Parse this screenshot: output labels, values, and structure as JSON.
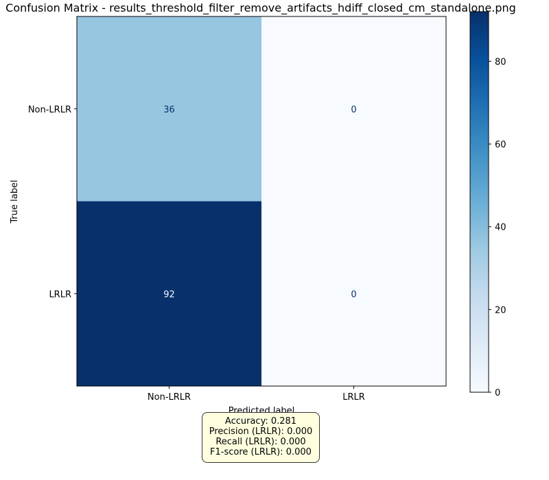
{
  "chart_data": {
    "type": "heatmap",
    "title": "Confusion Matrix - results_threshold_filter_remove_artifacts_hdiff_closed_cm_standalone.png",
    "xlabel": "Predicted label",
    "ylabel": "True label",
    "row_labels": [
      "Non-LRLR",
      "LRLR"
    ],
    "col_labels": [
      "Non-LRLR",
      "LRLR"
    ],
    "values": [
      [
        36,
        0
      ],
      [
        92,
        0
      ]
    ],
    "colormap": "Blues",
    "colorbar": {
      "min": 0,
      "max": 92,
      "ticks": [
        0,
        20,
        40,
        60,
        80
      ]
    }
  },
  "metrics": {
    "accuracy": "Accuracy: 0.281",
    "precision": "Precision (LRLR): 0.000",
    "recall": "Recall (LRLR): 0.000",
    "f1": "F1-score (LRLR): 0.000"
  }
}
